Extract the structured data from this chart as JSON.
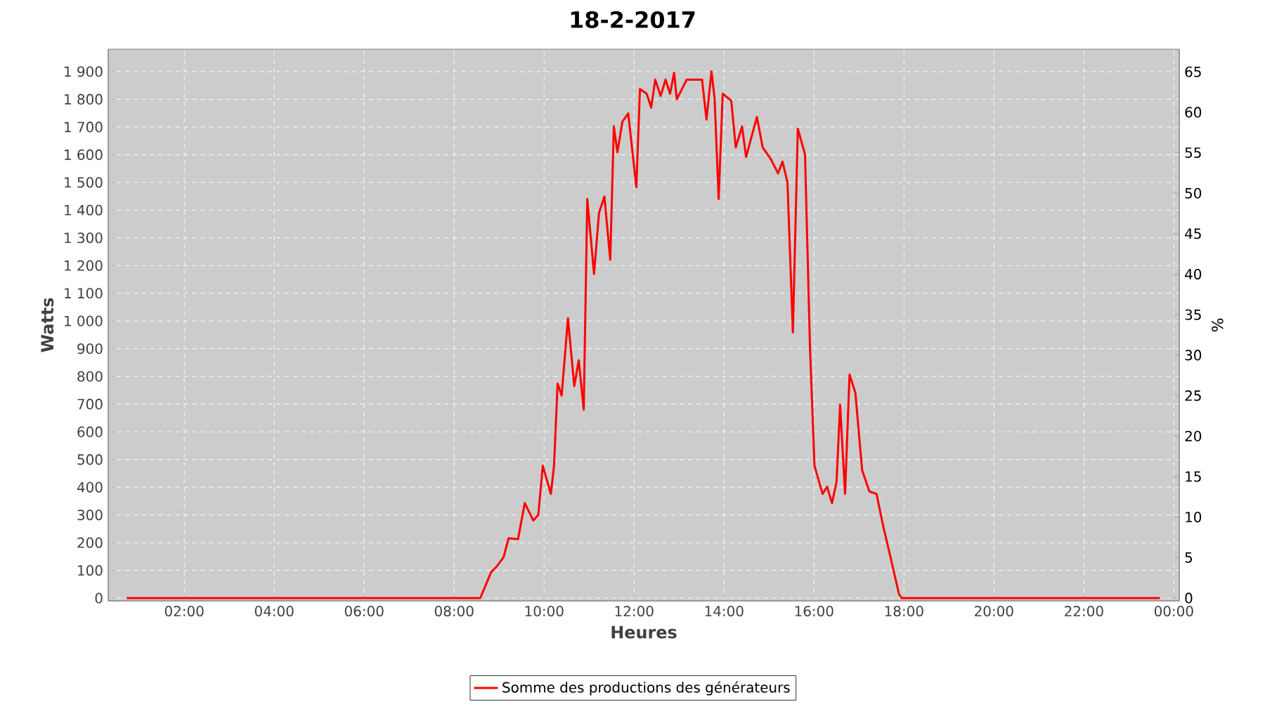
{
  "chart_data": {
    "type": "line",
    "title": "18-2-2017",
    "xlabel": "Heures",
    "ylabel": "Watts",
    "y2label": "%",
    "x": [
      0.72,
      8.58,
      8.82,
      8.95,
      9.1,
      9.21,
      9.42,
      9.57,
      9.76,
      9.87,
      9.97,
      10.15,
      10.22,
      10.3,
      10.39,
      10.53,
      10.67,
      10.77,
      10.88,
      10.96,
      11.11,
      11.22,
      11.34,
      11.47,
      11.55,
      11.63,
      11.74,
      11.87,
      12.05,
      12.13,
      12.28,
      12.38,
      12.47,
      12.59,
      12.7,
      12.8,
      12.89,
      12.95,
      13.17,
      13.51,
      13.61,
      13.72,
      13.79,
      13.88,
      13.97,
      14.16,
      14.26,
      14.4,
      14.49,
      14.73,
      14.86,
      15.04,
      15.2,
      15.3,
      15.41,
      15.53,
      15.64,
      15.8,
      15.91,
      16.01,
      16.19,
      16.29,
      16.4,
      16.5,
      16.58,
      16.69,
      16.79,
      16.92,
      17.07,
      17.23,
      17.39,
      17.54,
      17.7,
      17.89,
      17.95,
      23.69
    ],
    "series": [
      {
        "name": "Somme des productions des  générateurs",
        "color": "#ff0000",
        "values": [
          0,
          0,
          93,
          115,
          148,
          216,
          213,
          343,
          280,
          300,
          478,
          376,
          478,
          774,
          731,
          1010,
          765,
          858,
          680,
          1440,
          1170,
          1390,
          1449,
          1221,
          1702,
          1609,
          1719,
          1749,
          1483,
          1837,
          1820,
          1770,
          1871,
          1812,
          1871,
          1820,
          1896,
          1800,
          1871,
          1871,
          1727,
          1901,
          1803,
          1440,
          1820,
          1795,
          1626,
          1702,
          1592,
          1736,
          1626,
          1584,
          1533,
          1575,
          1500,
          959,
          1694,
          1601,
          908,
          478,
          376,
          402,
          343,
          419,
          698,
          376,
          807,
          740,
          461,
          385,
          376,
          258,
          148,
          14,
          0,
          0
        ]
      }
    ],
    "xlim": [
      0.31,
      24.12
    ],
    "xticks": [
      {
        "value": 2,
        "label": "02:00"
      },
      {
        "value": 4,
        "label": "04:00"
      },
      {
        "value": 6,
        "label": "06:00"
      },
      {
        "value": 8,
        "label": "08:00"
      },
      {
        "value": 10,
        "label": "10:00"
      },
      {
        "value": 12,
        "label": "12:00"
      },
      {
        "value": 14,
        "label": "14:00"
      },
      {
        "value": 16,
        "label": "16:00"
      },
      {
        "value": 18,
        "label": "18:00"
      },
      {
        "value": 20,
        "label": "20:00"
      },
      {
        "value": 22,
        "label": "22:00"
      },
      {
        "value": 24,
        "label": "00:00"
      }
    ],
    "ylim": [
      -10,
      1981
    ],
    "yticks": [
      0,
      100,
      200,
      300,
      400,
      500,
      600,
      700,
      800,
      900,
      {
        "value": 1000,
        "label": "1 000"
      },
      {
        "value": 1100,
        "label": "1 100"
      },
      {
        "value": 1200,
        "label": "1 200"
      },
      {
        "value": 1300,
        "label": "1 300"
      },
      {
        "value": 1400,
        "label": "1 400"
      },
      {
        "value": 1500,
        "label": "1 500"
      },
      {
        "value": 1600,
        "label": "1 600"
      },
      {
        "value": 1700,
        "label": "1 700"
      },
      {
        "value": 1800,
        "label": "1 800"
      },
      {
        "value": 1900,
        "label": "1 900"
      }
    ],
    "y2lim": [
      -0.35,
      67.8
    ],
    "y2ticks": [
      0,
      5,
      10,
      15,
      20,
      25,
      30,
      35,
      40,
      45,
      50,
      55,
      60,
      65
    ],
    "grid": true,
    "legend": "bottom",
    "marker": "none",
    "line_style": "solid"
  }
}
